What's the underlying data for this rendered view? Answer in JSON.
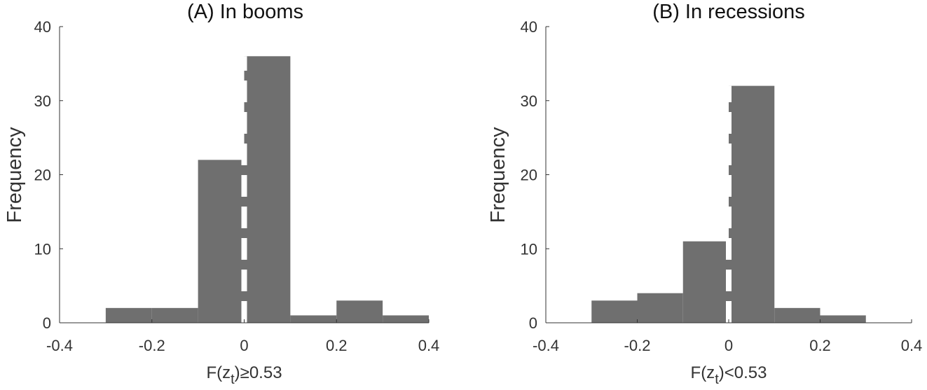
{
  "chart_data": [
    {
      "type": "bar",
      "title": "(A) In booms",
      "xlabel": "F(z_t)≥0.53",
      "xlabel_parts": {
        "pre": "F(z",
        "sub": "t",
        "post": ")≥0.53"
      },
      "ylabel": "Frequency",
      "bin_edges": [
        -0.3,
        -0.2,
        -0.1,
        0.0,
        0.1,
        0.2,
        0.3,
        0.4
      ],
      "values": [
        2,
        2,
        22,
        36,
        1,
        3,
        1
      ],
      "xlim": [
        -0.4,
        0.4
      ],
      "ylim": [
        0,
        40
      ],
      "xticks": [
        "-0.4",
        "-0.2",
        "0",
        "0.2",
        "0.4"
      ],
      "yticks": [
        "0",
        "10",
        "20",
        "30",
        "40"
      ],
      "vline": {
        "x": 0,
        "style": "dashed",
        "color": "#ffffff"
      },
      "bar_color": "#6f6f6f",
      "grid": false
    },
    {
      "type": "bar",
      "title": "(B) In recessions",
      "xlabel": "F(z_t)<0.53",
      "xlabel_parts": {
        "pre": "F(z",
        "sub": "t",
        "post": ")<0.53"
      },
      "ylabel": "Frequency",
      "bin_edges": [
        -0.3,
        -0.2,
        -0.1,
        0.0,
        0.1,
        0.2,
        0.3,
        0.4
      ],
      "values": [
        3,
        4,
        11,
        32,
        2,
        1,
        0
      ],
      "xlim": [
        -0.4,
        0.4
      ],
      "ylim": [
        0,
        40
      ],
      "xticks": [
        "-0.4",
        "-0.2",
        "0",
        "0.2",
        "0.4"
      ],
      "yticks": [
        "0",
        "10",
        "20",
        "30",
        "40"
      ],
      "vline": {
        "x": 0,
        "style": "dashed",
        "color": "#ffffff"
      },
      "bar_color": "#6f6f6f",
      "grid": false
    }
  ]
}
